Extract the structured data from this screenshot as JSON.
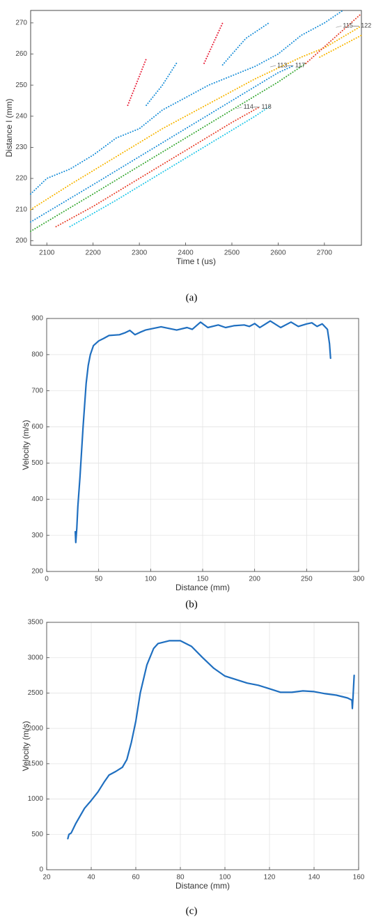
{
  "chart_data": [
    {
      "type": "line",
      "style": "dotted",
      "caption": "(a)",
      "x_label": "Time t (us)",
      "y_label": "Distance l (mm)",
      "xlim": [
        2065,
        2780
      ],
      "ylim": [
        198.5,
        274
      ],
      "xticks": [
        2100,
        2200,
        2300,
        2400,
        2500,
        2600,
        2700
      ],
      "yticks": [
        200,
        210,
        220,
        230,
        240,
        250,
        260,
        270
      ],
      "grid": false,
      "annotations": [
        {
          "text": "115— 122",
          "x": 2740,
          "y": 269
        },
        {
          "text": "113— 117",
          "x": 2598,
          "y": 256.3
        },
        {
          "text": "114— 118",
          "x": 2525,
          "y": 242.9
        }
      ],
      "series": [
        {
          "color": "#1a8fd8",
          "x": [
            2065,
            2100,
            2150,
            2200,
            2250,
            2300,
            2350,
            2400,
            2450,
            2500,
            2550,
            2600,
            2650,
            2700,
            2740
          ],
          "values": [
            215,
            220,
            223,
            227.5,
            233,
            236,
            242,
            246,
            250,
            253,
            256,
            260,
            266,
            270,
            274
          ]
        },
        {
          "color": "#f7b500",
          "x": [
            2065,
            2150,
            2250,
            2350,
            2450,
            2550,
            2650,
            2700,
            2780
          ],
          "values": [
            210,
            218,
            227,
            236,
            244,
            252,
            259,
            262,
            269
          ]
        },
        {
          "color": "#1a8fd8",
          "x": [
            2065,
            2200,
            2300,
            2400,
            2500,
            2600,
            2630
          ],
          "values": [
            206,
            218,
            227,
            236,
            245,
            254,
            256
          ]
        },
        {
          "color": "#3aaa35",
          "x": [
            2065,
            2200,
            2300,
            2400,
            2500,
            2600,
            2660
          ],
          "values": [
            203,
            215,
            224,
            233,
            242,
            251,
            257
          ]
        },
        {
          "color": "#e8402a",
          "x": [
            2120,
            2200,
            2300,
            2400,
            2500,
            2560,
            null,
            2660,
            2780
          ],
          "values": [
            204.5,
            211,
            220,
            229,
            238,
            243,
            null,
            257,
            273
          ]
        },
        {
          "color": "#22c7e8",
          "x": [
            2150,
            2250,
            2350,
            2450,
            2550,
            2580
          ],
          "values": [
            204.5,
            213,
            222,
            231,
            240,
            243
          ]
        },
        {
          "color": "#e8203a",
          "x": [
            2275,
            2315,
            null,
            2440,
            2480
          ],
          "values": [
            243.5,
            258.5,
            null,
            257,
            270
          ]
        },
        {
          "color": "#1a8fd8",
          "x": [
            2315,
            2350,
            2380,
            null,
            2480,
            2530,
            2580
          ],
          "values": [
            243.5,
            250,
            257,
            null,
            256.5,
            265,
            270
          ]
        },
        {
          "color": "#f7b500",
          "x": [
            2690,
            2780
          ],
          "values": [
            259,
            266
          ]
        }
      ]
    },
    {
      "type": "line",
      "caption": "(b)",
      "x_label": "Distance (mm)",
      "y_label": "Velocity (m/s)",
      "xlim": [
        0,
        300
      ],
      "ylim": [
        200,
        900
      ],
      "xticks": [
        0,
        50,
        100,
        150,
        200,
        250,
        300
      ],
      "yticks": [
        200,
        300,
        400,
        500,
        600,
        700,
        800,
        900
      ],
      "grid": true,
      "series": [
        {
          "color": "#1f6fc0",
          "x": [
            27.5,
            28,
            29,
            30,
            32,
            35,
            38,
            40,
            42,
            45,
            50,
            55,
            60,
            70,
            75,
            80,
            85,
            90,
            95,
            110,
            125,
            135,
            140,
            148,
            155,
            165,
            172,
            180,
            190,
            195,
            200,
            205,
            215,
            225,
            235,
            242,
            250,
            255,
            260,
            265,
            270,
            272,
            273
          ],
          "values": [
            310,
            280,
            320,
            380,
            460,
            600,
            720,
            770,
            800,
            825,
            838,
            845,
            853,
            855,
            860,
            867,
            855,
            862,
            868,
            877,
            868,
            875,
            870,
            890,
            875,
            882,
            875,
            880,
            882,
            878,
            886,
            875,
            893,
            875,
            890,
            878,
            885,
            888,
            878,
            885,
            870,
            830,
            790
          ]
        }
      ]
    },
    {
      "type": "line",
      "caption": "(c)",
      "x_label": "Distance (mm)",
      "y_label": "Velocity (m/s)",
      "xlim": [
        20,
        160
      ],
      "ylim": [
        0,
        3500
      ],
      "xticks": [
        20,
        40,
        60,
        80,
        100,
        120,
        140,
        160
      ],
      "yticks": [
        0,
        500,
        1000,
        1500,
        2000,
        2500,
        3000,
        3500
      ],
      "grid": true,
      "series": [
        {
          "color": "#1f6fc0",
          "x": [
            29.5,
            30,
            31,
            33,
            35,
            37,
            40,
            43,
            46,
            48,
            51,
            54,
            56,
            58,
            60,
            62,
            65,
            68,
            70,
            75,
            80,
            85,
            90,
            95,
            100,
            110,
            115,
            120,
            125,
            130,
            135,
            140,
            145,
            150,
            155,
            157,
            157.2,
            157.5,
            158
          ],
          "values": [
            440,
            500,
            520,
            650,
            760,
            870,
            980,
            1100,
            1250,
            1340,
            1390,
            1450,
            1560,
            1800,
            2100,
            2500,
            2900,
            3130,
            3200,
            3240,
            3240,
            3160,
            3000,
            2850,
            2740,
            2640,
            2610,
            2560,
            2510,
            2510,
            2530,
            2520,
            2490,
            2470,
            2430,
            2400,
            2280,
            2450,
            2750
          ]
        }
      ]
    }
  ]
}
